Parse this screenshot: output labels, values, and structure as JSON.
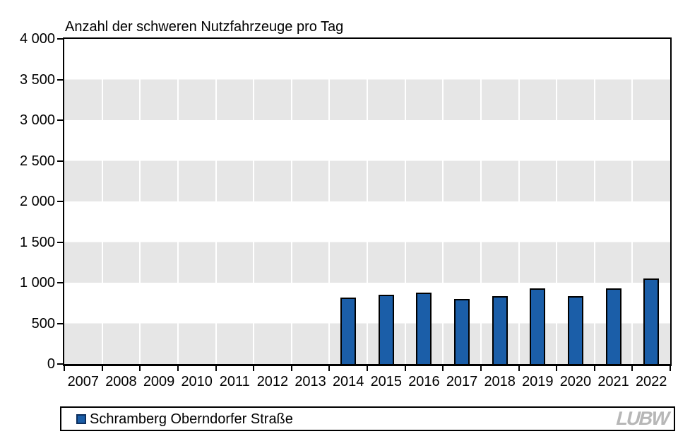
{
  "title": "Anzahl der schweren Nutzfahrzeuge pro Tag",
  "legend": {
    "label": "Schramberg Oberndorfer Straße"
  },
  "logo_text": "LUBW",
  "colors": {
    "bar_fill": "#1B5EA8",
    "bar_border": "#000000",
    "band_gray": "#E6E6E6",
    "band_white": "#FFFFFF",
    "axis": "#000000",
    "logo_gray": "#B7B7B7",
    "legend_marker_fill": "#1B5EA8",
    "legend_marker_border": "#0D2F5E"
  },
  "y_axis": {
    "min": 0,
    "max": 4000,
    "step": 500,
    "tick_labels": [
      "4 000",
      "3 500",
      "3 000",
      "2 500",
      "2 000",
      "1 500",
      "1 000",
      "500",
      "0"
    ]
  },
  "chart_data": {
    "type": "bar",
    "title": "Anzahl der schweren Nutzfahrzeuge pro Tag",
    "categories": [
      "2007",
      "2008",
      "2009",
      "2010",
      "2011",
      "2012",
      "2013",
      "2014",
      "2015",
      "2016",
      "2017",
      "2018",
      "2019",
      "2020",
      "2021",
      "2022"
    ],
    "series": [
      {
        "name": "Schramberg Oberndorfer Straße",
        "values": [
          null,
          null,
          null,
          null,
          null,
          null,
          null,
          820,
          850,
          880,
          800,
          835,
          930,
          835,
          930,
          1055
        ]
      }
    ],
    "xlabel": "",
    "ylabel": "Anzahl der schweren Nutzfahrzeuge pro Tag",
    "ylim": [
      0,
      4000
    ],
    "grid": "alternating-horizontal-bands",
    "legend_position": "bottom"
  }
}
